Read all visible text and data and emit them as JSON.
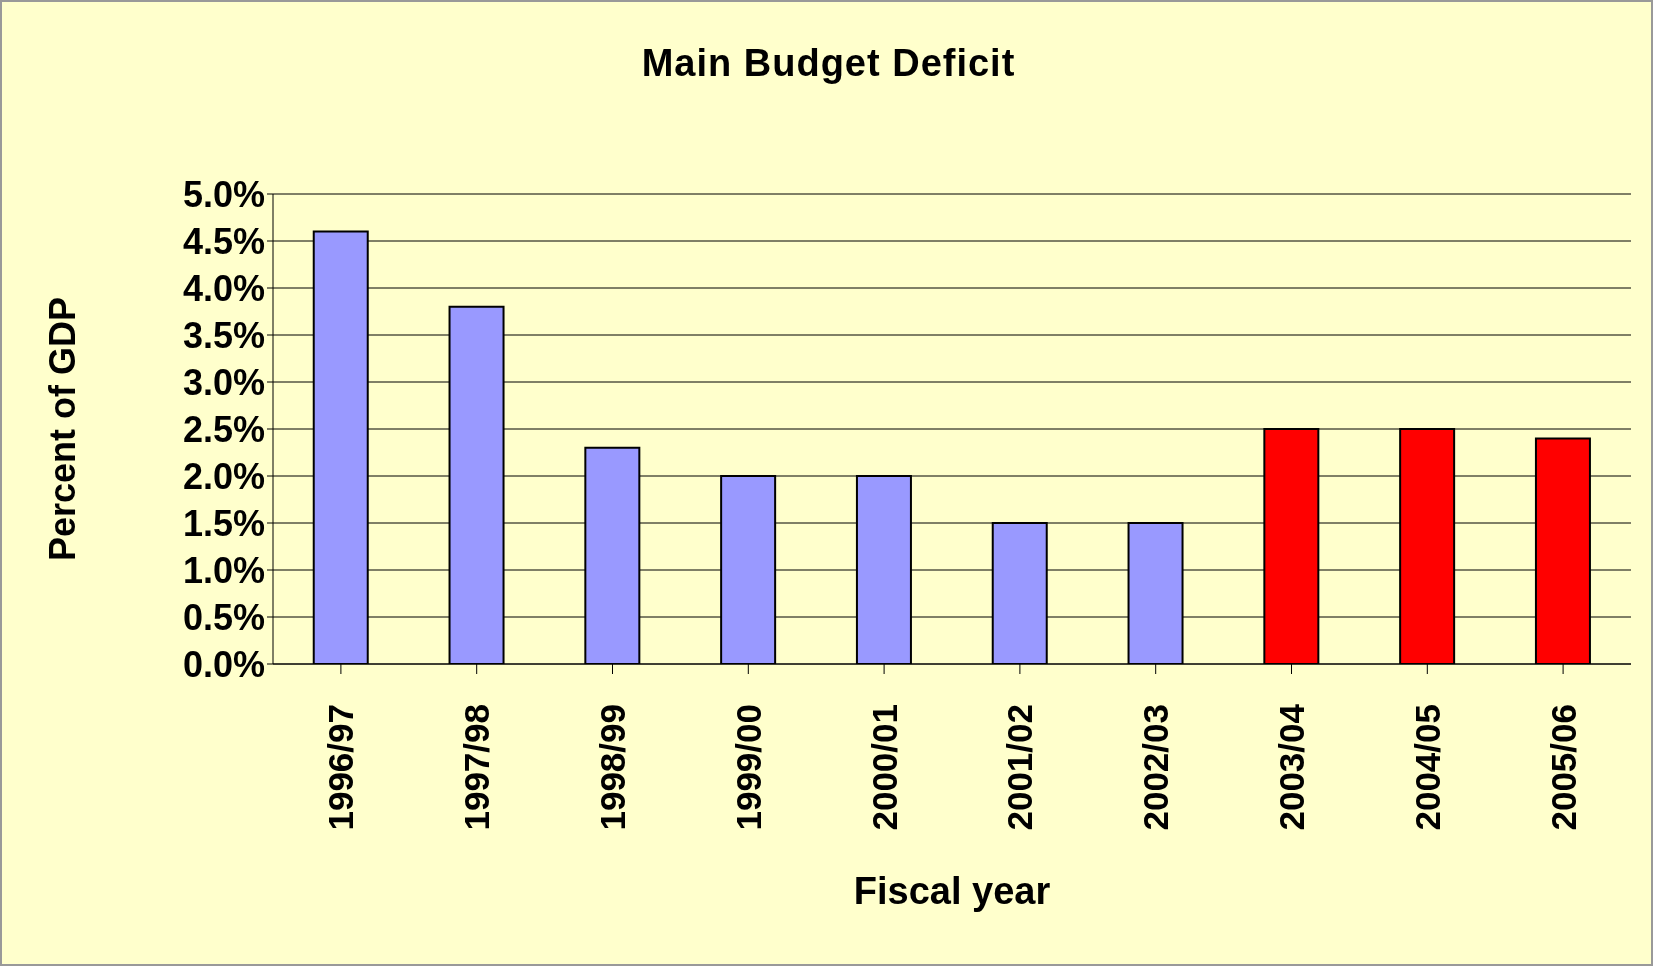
{
  "chart_data": {
    "type": "bar",
    "title": "Main Budget Deficit",
    "xlabel": "Fiscal year",
    "ylabel": "Percent of GDP",
    "categories": [
      "1996/97",
      "1997/98",
      "1998/99",
      "1999/00",
      "2000/01",
      "2001/02",
      "2002/03",
      "2003/04",
      "2004/05",
      "2005/06"
    ],
    "values": [
      4.6,
      3.8,
      2.3,
      2.0,
      2.0,
      1.5,
      1.5,
      2.5,
      2.5,
      2.4
    ],
    "colors": [
      "#9999ff",
      "#9999ff",
      "#9999ff",
      "#9999ff",
      "#9999ff",
      "#9999ff",
      "#9999ff",
      "#ff0000",
      "#ff0000",
      "#ff0000"
    ],
    "ylim": [
      0,
      5
    ],
    "yticks": [
      {
        "value": 0,
        "label": "0.0%"
      },
      {
        "value": 0.5,
        "label": "0.5%"
      },
      {
        "value": 1,
        "label": "1.0%"
      },
      {
        "value": 1.5,
        "label": "1.5%"
      },
      {
        "value": 2,
        "label": "2.0%"
      },
      {
        "value": 2.5,
        "label": "2.5%"
      },
      {
        "value": 3,
        "label": "3.0%"
      },
      {
        "value": 3.5,
        "label": "3.5%"
      },
      {
        "value": 4,
        "label": "4.0%"
      },
      {
        "value": 4.5,
        "label": "4.5%"
      },
      {
        "value": 5,
        "label": "5.0%"
      }
    ],
    "grid": "y"
  }
}
